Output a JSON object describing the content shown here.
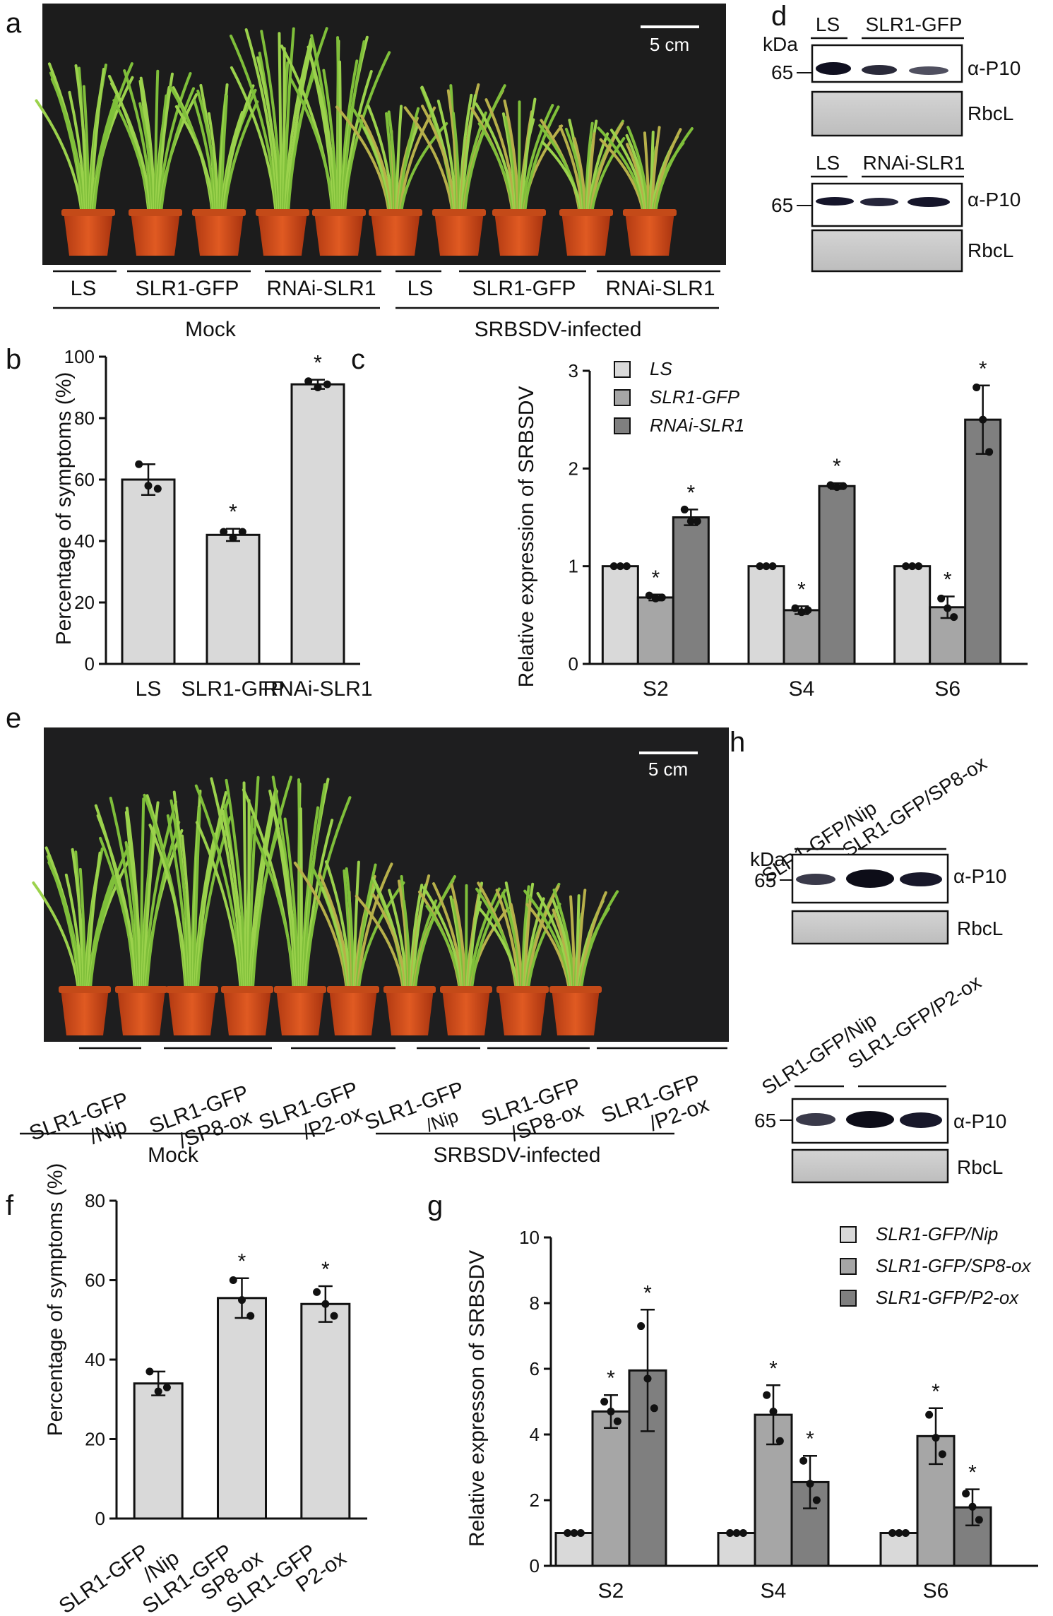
{
  "panel_labels": {
    "a": "a",
    "b": "b",
    "c": "c",
    "d": "d",
    "e": "e",
    "f": "f",
    "g": "g",
    "h": "h"
  },
  "panel_a": {
    "scale_bar": "5 cm",
    "groups": [
      "LS",
      "SLR1-GFP",
      "RNAi-SLR1",
      "LS",
      "SLR1-GFP",
      "RNAi-SLR1"
    ],
    "conditions": [
      "Mock",
      "SRBSDV-infected"
    ]
  },
  "panel_d": {
    "kda": "kDa",
    "blot1_lanes": [
      "LS",
      "SLR1-GFP"
    ],
    "blot2_lanes": [
      "LS",
      "RNAi-SLR1"
    ],
    "marker": "65",
    "antibody": "α-P10",
    "loading": "RbcL"
  },
  "panel_e": {
    "scale_bar": "5 cm",
    "groups": [
      [
        "SLR1-GFP",
        "/Nip"
      ],
      [
        "SLR1-GFP",
        "/SP8-ox"
      ],
      [
        "SLR1-GFP",
        "/P2-ox"
      ],
      [
        "SLR1-GFP",
        "/Nip"
      ],
      [
        "SLR1-GFP",
        "/SP8-ox"
      ],
      [
        "SLR1-GFP",
        "/P2-ox"
      ]
    ],
    "conditions": [
      "Mock",
      "SRBSDV-infected"
    ]
  },
  "panel_h": {
    "kda": "kDa",
    "blot1_lanes": [
      "SLR1-GFP/Nip",
      "SLR1-GFP/SP8-ox"
    ],
    "blot2_lanes": [
      "SLR1-GFP/Nip",
      "SLR1-GFP/P2-ox"
    ],
    "marker": "65",
    "antibody": "α-P10",
    "loading": "RbcL"
  },
  "chart_data": [
    {
      "id": "b",
      "type": "bar",
      "categories": [
        "LS",
        "SLR1-GFP",
        "RNAi-SLR1"
      ],
      "values": [
        60,
        42,
        91
      ],
      "errors": [
        5,
        2,
        1.5
      ],
      "points": [
        [
          65,
          58,
          57
        ],
        [
          43,
          41,
          43
        ],
        [
          92,
          90,
          91
        ]
      ],
      "significance": [
        "",
        "*",
        "*"
      ],
      "ylabel": "Percentage of symptoms (%)",
      "ylim": [
        0,
        100
      ],
      "yticks": [
        0,
        20,
        40,
        60,
        80,
        100
      ],
      "color": "#d9d9d9"
    },
    {
      "id": "c",
      "type": "bar",
      "categories": [
        "S2",
        "S4",
        "S6"
      ],
      "series": [
        {
          "name": "LS",
          "values": [
            1,
            1,
            1
          ],
          "errors": [
            0,
            0,
            0
          ],
          "points": [
            [
              1,
              1,
              1
            ],
            [
              1,
              1,
              1
            ],
            [
              1,
              1,
              1
            ]
          ],
          "significance": [
            "",
            "",
            ""
          ],
          "color": "#d9d9d9"
        },
        {
          "name": "SLR1-GFP",
          "values": [
            0.68,
            0.55,
            0.58
          ],
          "errors": [
            0.03,
            0.04,
            0.11
          ],
          "points": [
            [
              0.7,
              0.67,
              0.68
            ],
            [
              0.57,
              0.53,
              0.55
            ],
            [
              0.67,
              0.57,
              0.48
            ]
          ],
          "significance": [
            "*",
            "*",
            "*"
          ],
          "color": "#a6a6a6"
        },
        {
          "name": "RNAi-SLR1",
          "values": [
            1.5,
            1.82,
            2.5
          ],
          "errors": [
            0.08,
            0.03,
            0.35
          ],
          "points": [
            [
              1.58,
              1.46,
              1.46
            ],
            [
              1.83,
              1.81,
              1.82
            ],
            [
              2.83,
              2.5,
              2.17
            ]
          ],
          "significance": [
            "*",
            "*",
            "*"
          ],
          "color": "#7f7f7f"
        }
      ],
      "ylabel": "Relative expression of SRBSDV",
      "ylim": [
        0,
        3
      ],
      "yticks": [
        0,
        1,
        2,
        3
      ],
      "legend_position": "top-left"
    },
    {
      "id": "f",
      "type": "bar",
      "categories": [
        "SLR1-GFP\n/Nip",
        "SLR1-GFP\nSP8-ox",
        "SLR1-GFP\nP2-ox"
      ],
      "values": [
        34,
        55.5,
        54
      ],
      "errors": [
        3,
        5,
        4.5
      ],
      "points": [
        [
          37,
          32,
          33
        ],
        [
          60,
          55,
          51
        ],
        [
          57,
          54,
          51
        ]
      ],
      "significance": [
        "",
        "*",
        "*"
      ],
      "ylabel": "Percentage of symptoms (%)",
      "ylim": [
        0,
        80
      ],
      "yticks": [
        0,
        20,
        40,
        60,
        80
      ],
      "color": "#d9d9d9"
    },
    {
      "id": "g",
      "type": "bar",
      "categories": [
        "S2",
        "S4",
        "S6"
      ],
      "series": [
        {
          "name": "SLR1-GFP/Nip",
          "values": [
            1,
            1,
            1
          ],
          "errors": [
            0,
            0,
            0
          ],
          "points": [
            [
              1,
              1,
              1
            ],
            [
              1,
              1,
              1
            ],
            [
              1,
              1,
              1
            ]
          ],
          "significance": [
            "",
            "",
            ""
          ],
          "color": "#d9d9d9"
        },
        {
          "name": "SLR1-GFP/SP8-ox",
          "values": [
            4.7,
            4.6,
            3.95
          ],
          "errors": [
            0.5,
            0.9,
            0.85
          ],
          "points": [
            [
              5.0,
              4.7,
              4.4
            ],
            [
              5.2,
              4.7,
              3.8
            ],
            [
              4.6,
              3.9,
              3.4
            ]
          ],
          "significance": [
            "*",
            "*",
            "*"
          ],
          "color": "#a6a6a6"
        },
        {
          "name": "SLR1-GFP/P2-ox",
          "values": [
            5.95,
            2.55,
            1.78
          ],
          "errors": [
            1.85,
            0.8,
            0.55
          ],
          "points": [
            [
              7.3,
              5.7,
              4.8
            ],
            [
              3.2,
              2.5,
              2.0
            ],
            [
              2.2,
              1.8,
              1.4
            ]
          ],
          "significance": [
            "*",
            "*",
            "*"
          ],
          "color": "#7f7f7f"
        }
      ],
      "ylabel": "Relative expresson of SRBSDV",
      "ylim": [
        0,
        10
      ],
      "yticks": [
        0,
        2,
        4,
        6,
        8,
        10
      ],
      "legend_position": "top-right"
    }
  ]
}
